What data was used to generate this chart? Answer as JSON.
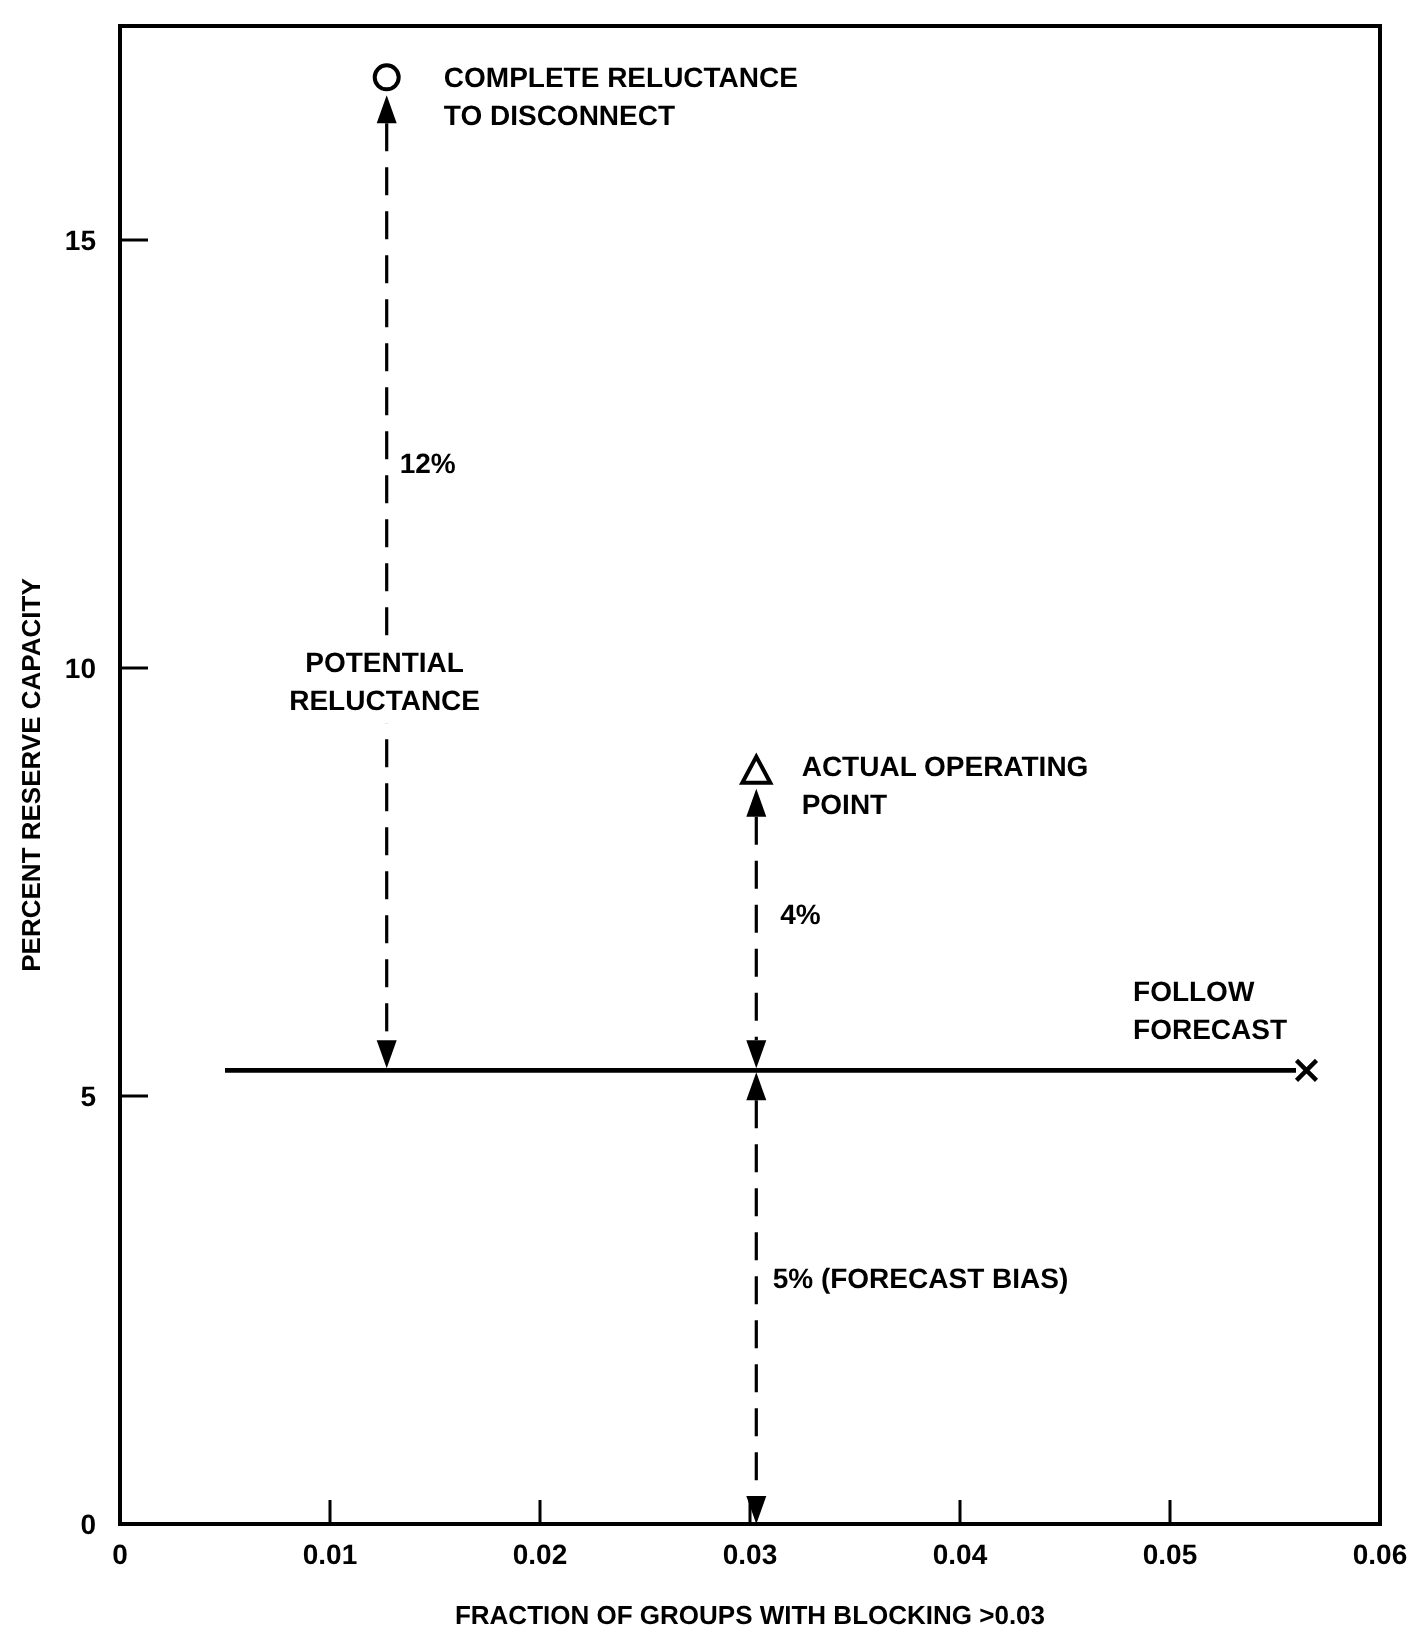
{
  "chart_data": {
    "type": "scatter",
    "xlabel": "FRACTION OF GROUPS WITH BLOCKING >0.03",
    "ylabel": "PERCENT RESERVE CAPACITY",
    "xlim": [
      0,
      0.06
    ],
    "ylim": [
      0,
      17.5
    ],
    "xticks": [
      0,
      0.01,
      0.02,
      0.03,
      0.04,
      0.05,
      0.06
    ],
    "yticks": [
      0,
      5,
      10,
      15
    ],
    "grid": false,
    "series": [
      {
        "type": "line",
        "color": "#000000",
        "x": [
          0.005,
          0.056
        ],
        "values": [
          5.3,
          5.3
        ],
        "marker": "none",
        "line_style": "solid"
      },
      {
        "color": "#000000",
        "x": [
          0.0127
        ],
        "values": [
          16.9
        ],
        "marker": "circle"
      },
      {
        "color": "#000000",
        "x": [
          0.0303
        ],
        "values": [
          8.8
        ],
        "marker": "triangle"
      },
      {
        "color": "#000000",
        "x": [
          0.0565
        ],
        "values": [
          5.3
        ],
        "marker": "cross"
      }
    ],
    "annotations": [
      "COMPLETE RELUCTANCE\nTO DISCONNECT",
      "12%",
      "POTENTIAL\nRELUCTANCE",
      "ACTUAL OPERATING\nPOINT",
      "4%",
      "FOLLOW\nFORECAST",
      "5% (FORECAST BIAS)"
    ]
  }
}
